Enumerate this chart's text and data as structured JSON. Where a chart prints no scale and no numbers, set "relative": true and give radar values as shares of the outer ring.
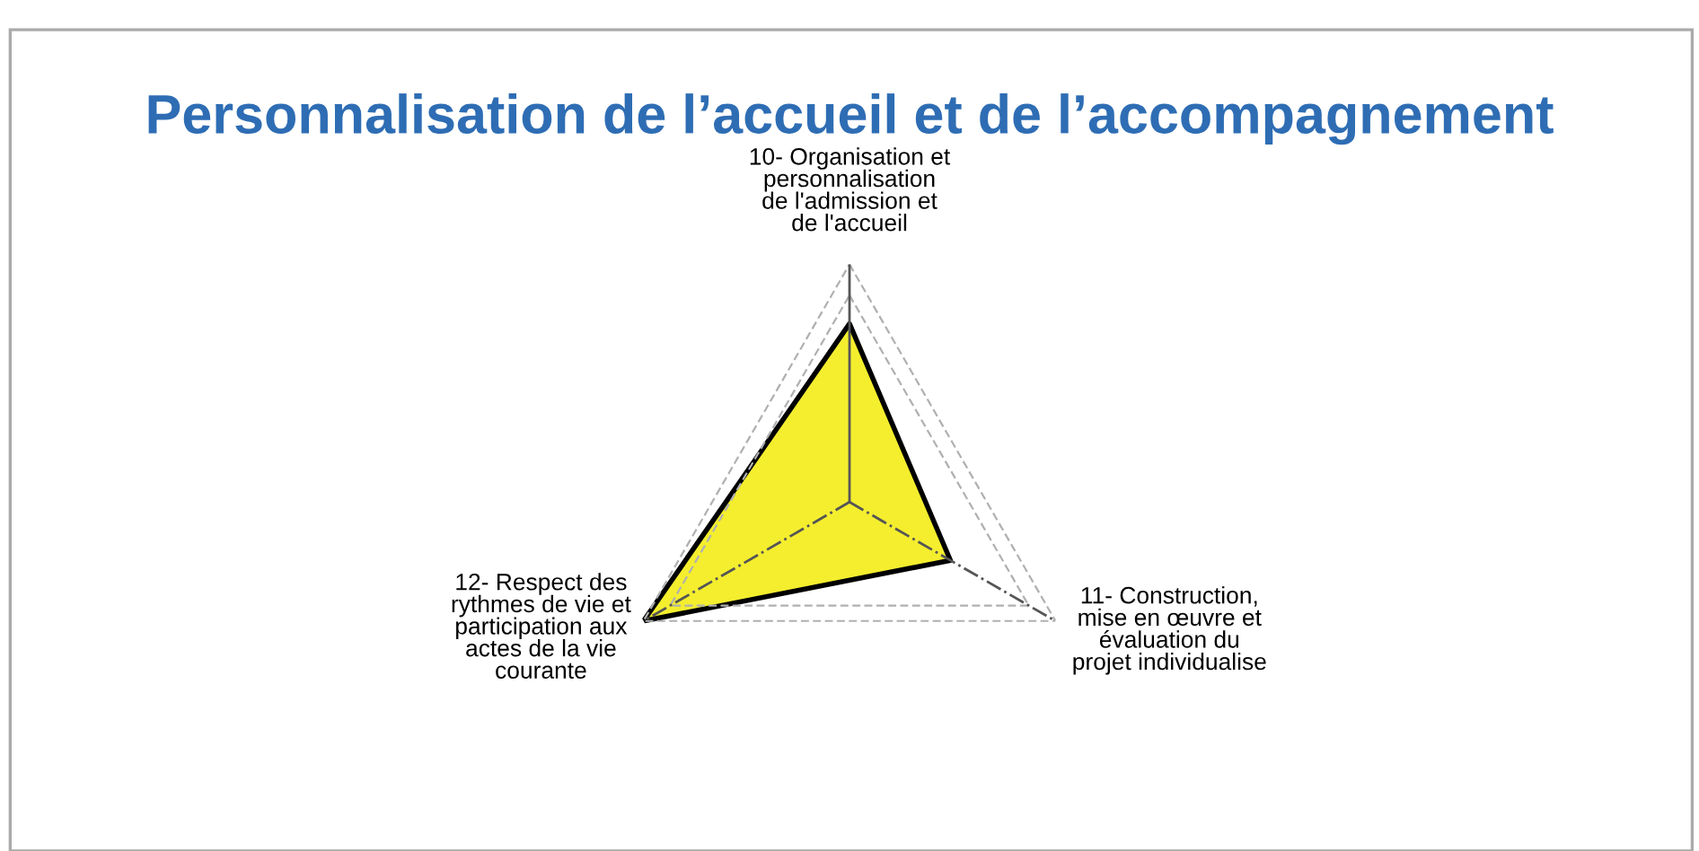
{
  "chart_data": {
    "type": "radar",
    "title": "Personnalisation de l’accueil et de l’accompagnement",
    "categories": [
      "10- Organisation et\npersonnalisation\nde l'admission et\nde l'accueil",
      "11- Construction,\nmise en œuvre et\névaluation du\nprojet individualise",
      "12- Respect des\nrythmes de vie et\nparticipation aux\nactes de la vie\ncourante"
    ],
    "relative": true,
    "grid": true,
    "series": [
      {
        "color": "#f4ee2e",
        "values": [
          0.75,
          0.49,
          1.0
        ]
      }
    ]
  }
}
